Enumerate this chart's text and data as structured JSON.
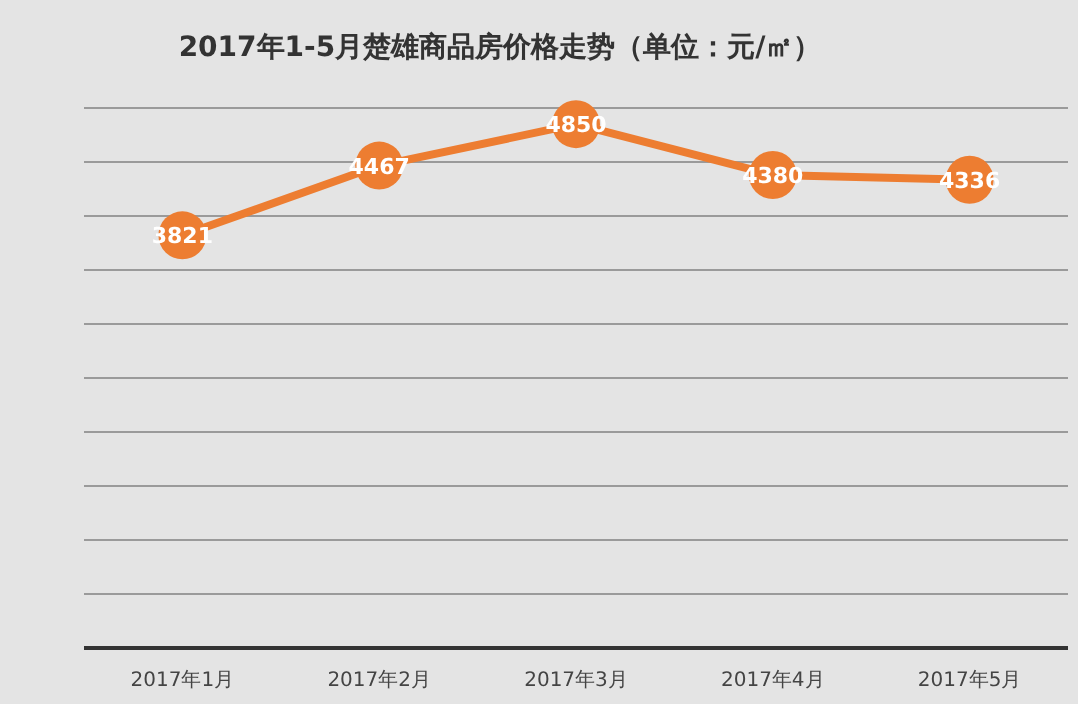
{
  "chart_data": {
    "type": "line",
    "title": "2017年1-5月楚雄商品房价格走势（单位：元/㎡）",
    "categories": [
      "2017年1月",
      "2017年2月",
      "2017年3月",
      "2017年4月",
      "2017年5月"
    ],
    "series": [
      {
        "color": "#ed7d31",
        "values": [
          3821,
          4467,
          4850,
          4380,
          4336
        ]
      }
    ],
    "ylim": [
      0,
      5000
    ],
    "yticks": [
      {
        "value": 0,
        "label": null
      },
      {
        "value": 500,
        "label": null
      },
      {
        "value": 1000,
        "label": null
      },
      {
        "value": 1500,
        "label": null
      },
      {
        "value": 2000,
        "label": null
      },
      {
        "value": 2500,
        "label": null
      },
      {
        "value": 3000,
        "label": null
      },
      {
        "value": 3500,
        "label": null
      },
      {
        "value": 4000,
        "label": null
      },
      {
        "value": 4500,
        "label": null
      },
      {
        "value": 5000,
        "label": null
      }
    ],
    "tick_labels": "x",
    "grid": "y",
    "marker": "circle",
    "data_labels": true
  }
}
